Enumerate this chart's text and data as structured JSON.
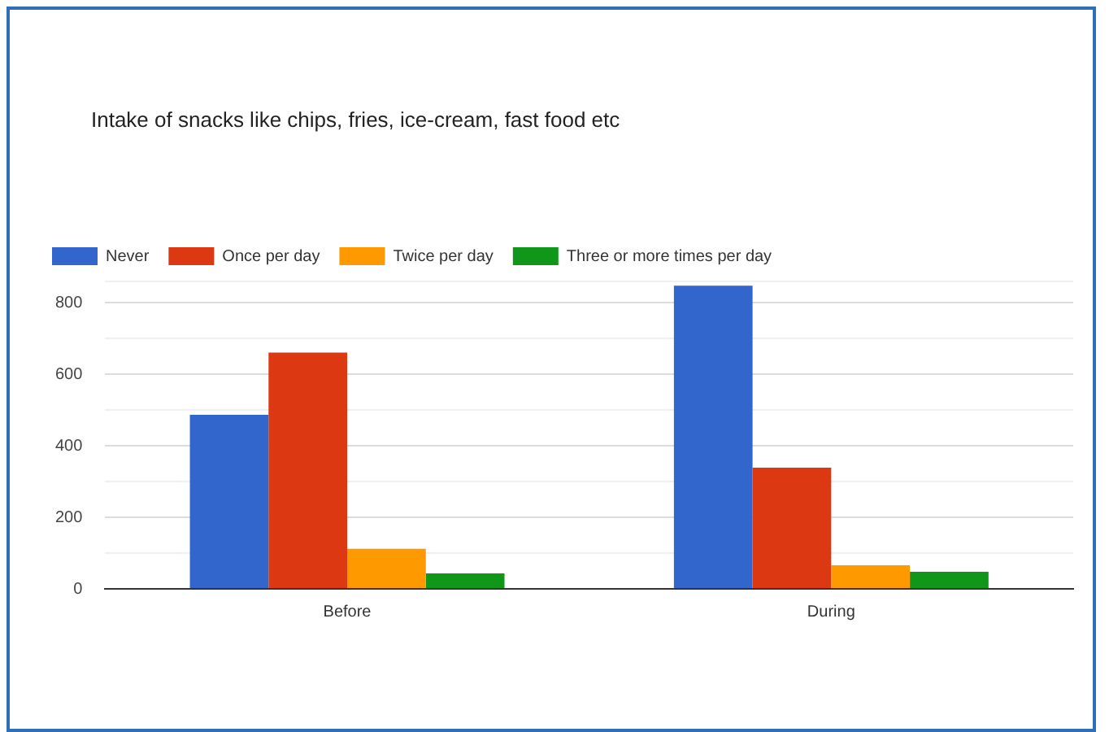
{
  "chart_data": {
    "type": "bar",
    "title": "Intake of snacks like chips, fries, ice-cream, fast food etc",
    "categories": [
      "Before",
      "During"
    ],
    "series": [
      {
        "name": "Never",
        "color": "#3366cc",
        "values": [
          487,
          848
        ]
      },
      {
        "name": "Once per day",
        "color": "#dc3912",
        "values": [
          661,
          339
        ]
      },
      {
        "name": "Twice per day",
        "color": "#ff9900",
        "values": [
          112,
          66
        ]
      },
      {
        "name": "Three or more times per day",
        "color": "#109618",
        "values": [
          43,
          48
        ]
      }
    ],
    "ylim": [
      0,
      860
    ],
    "yticks": [
      0,
      {
        "value": 100,
        "label": null
      },
      200,
      {
        "value": 300,
        "label": null
      },
      400,
      {
        "value": 500,
        "label": null
      },
      600,
      {
        "value": 700,
        "label": null
      },
      800,
      {
        "value": 860,
        "label": null
      }
    ],
    "grid": "y",
    "legend": "top left"
  }
}
